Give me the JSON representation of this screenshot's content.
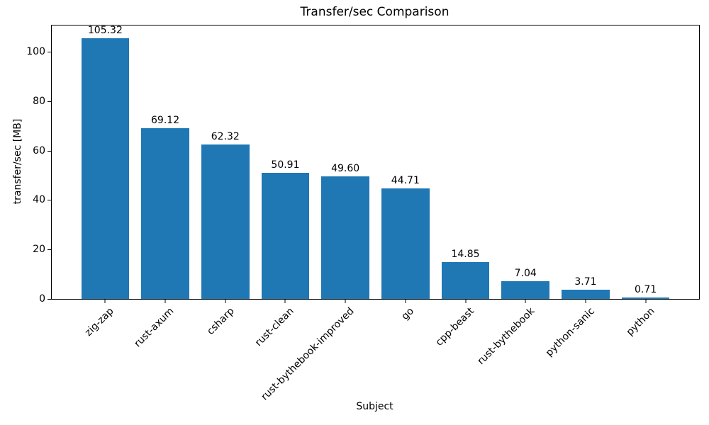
{
  "chart_data": {
    "type": "bar",
    "title": "Transfer/sec Comparison",
    "xlabel": "Subject",
    "ylabel": "transfer/sec [MB]",
    "categories": [
      "zig-zap",
      "rust-axum",
      "csharp",
      "rust-clean",
      "rust-bythebook-improved",
      "go",
      "cpp-beast",
      "rust-bythebook",
      "python-sanic",
      "python"
    ],
    "values": [
      105.32,
      69.12,
      62.32,
      50.91,
      49.6,
      44.71,
      14.85,
      7.04,
      3.71,
      0.71
    ],
    "value_labels": [
      "105.32",
      "69.12",
      "62.32",
      "50.91",
      "49.60",
      "44.71",
      "14.85",
      "7.04",
      "3.71",
      "0.71"
    ],
    "yticks": [
      0,
      20,
      40,
      60,
      80,
      100
    ],
    "ylim": [
      0,
      110.59
    ],
    "bar_color": "#1f77b4",
    "bar_width_fraction": 0.8,
    "xtick_rotation_deg": 45,
    "grid": false,
    "legend": null
  }
}
